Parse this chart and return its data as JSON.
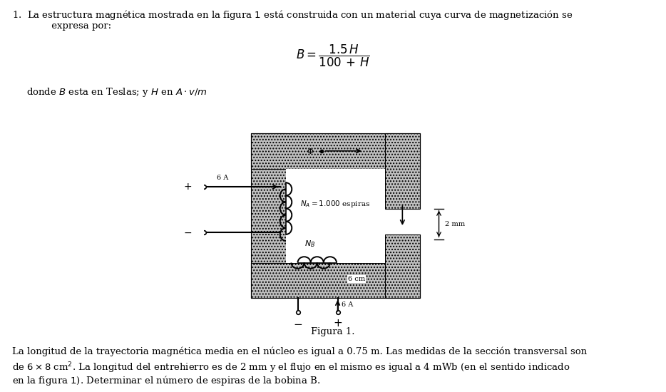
{
  "bg_color": "#ffffff",
  "text_color": "#000000",
  "core_fill": "#c8c8c8",
  "line1": "1.  La estructura magnética mostrada en la figura $1$ está construida con un material cuya curva de magnetización se",
  "line2": "     expresa por:",
  "formula": "$B = \\dfrac{1.5\\, H}{100\\, +\\, H}$",
  "donde": "donde $B$ esta en Teslas; y $H$ en $A \\cdot v/m$",
  "bottom1": "La longitud de la trayectoria magnética media en el núcleo es igual a 0.75 m. Las medidas de la sección transversal son",
  "bottom2": "de $6 \\times 8$ cm$^2$. La longitud del entrehierro es de 2 mm y el flujo en el mismo es igual a 4 mWb (en el sentido indicado",
  "bottom3": "en la figura $1$). Determinar el número de espiras de la bobina B.",
  "figura": "Figura 1."
}
